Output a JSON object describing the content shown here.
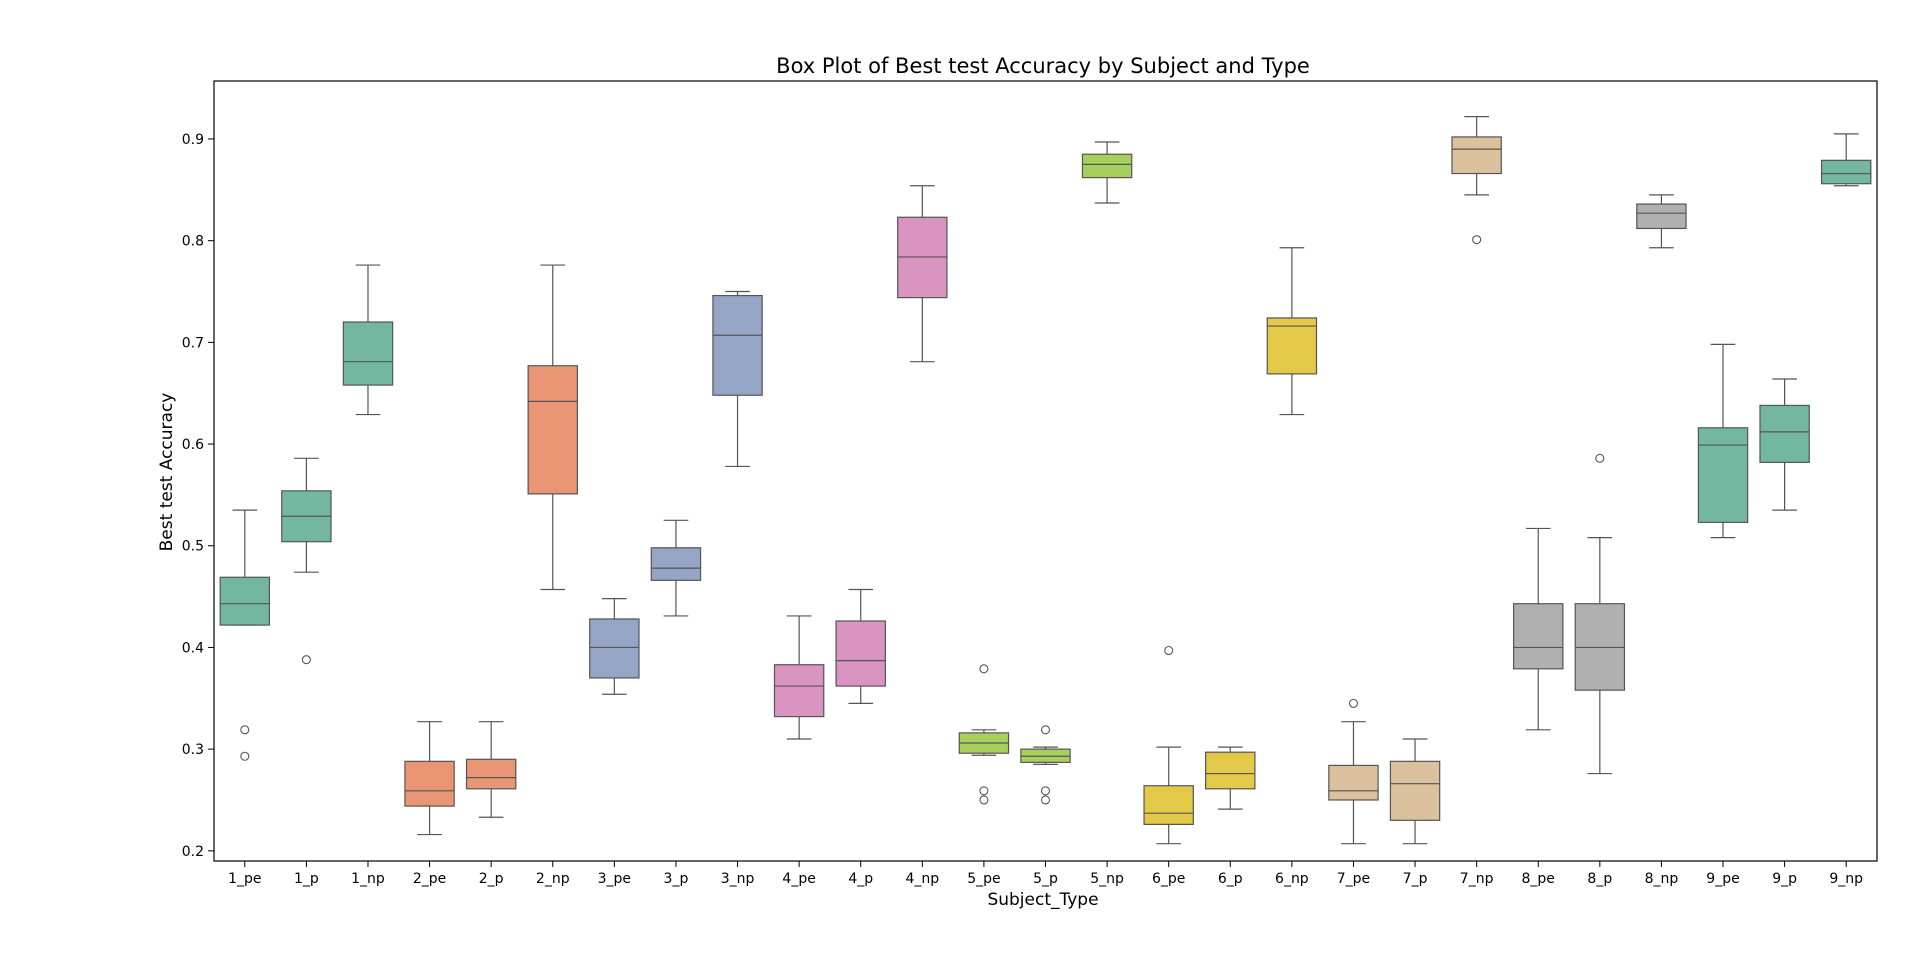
{
  "chart_data": {
    "type": "box",
    "title": "Box Plot of Best test Accuracy by Subject and Type",
    "xlabel": "Subject_Type",
    "ylabel": "Best test Accuracy",
    "ylim": [
      0.19,
      0.957
    ],
    "yticks": [
      0.2,
      0.3,
      0.4,
      0.5,
      0.6,
      0.7,
      0.8,
      0.9
    ],
    "ytick_labels": [
      "0.2",
      "0.3",
      "0.4",
      "0.5",
      "0.6",
      "0.7",
      "0.8",
      "0.9"
    ],
    "grid": false,
    "legend": "none",
    "colors": {
      "1": "#73b7a0",
      "2": "#ea9675",
      "3": "#94a5c6",
      "4": "#da94c2",
      "5": "#a8d05c",
      "6": "#e4c949",
      "7": "#dbc19d",
      "8": "#b0b0b0",
      "9": "#73b7a0",
      "line": "#555555"
    },
    "boxes": [
      {
        "label": "1_pe",
        "group": "1",
        "whislo": 0.422,
        "q1": 0.422,
        "med": 0.443,
        "q3": 0.469,
        "whishi": 0.535,
        "fliers": [
          0.319,
          0.293
        ]
      },
      {
        "label": "1_p",
        "group": "1",
        "whislo": 0.474,
        "q1": 0.504,
        "med": 0.529,
        "q3": 0.554,
        "whishi": 0.586,
        "fliers": [
          0.388
        ]
      },
      {
        "label": "1_np",
        "group": "1",
        "whislo": 0.629,
        "q1": 0.658,
        "med": 0.681,
        "q3": 0.72,
        "whishi": 0.776,
        "fliers": []
      },
      {
        "label": "2_pe",
        "group": "2",
        "whislo": 0.216,
        "q1": 0.244,
        "med": 0.259,
        "q3": 0.288,
        "whishi": 0.327,
        "fliers": []
      },
      {
        "label": "2_p",
        "group": "2",
        "whislo": 0.233,
        "q1": 0.261,
        "med": 0.272,
        "q3": 0.29,
        "whishi": 0.327,
        "fliers": []
      },
      {
        "label": "2_np",
        "group": "2",
        "whislo": 0.457,
        "q1": 0.551,
        "med": 0.642,
        "q3": 0.677,
        "whishi": 0.776,
        "fliers": []
      },
      {
        "label": "3_pe",
        "group": "3",
        "whislo": 0.354,
        "q1": 0.37,
        "med": 0.4,
        "q3": 0.428,
        "whishi": 0.448,
        "fliers": []
      },
      {
        "label": "3_p",
        "group": "3",
        "whislo": 0.431,
        "q1": 0.466,
        "med": 0.478,
        "q3": 0.498,
        "whishi": 0.525,
        "fliers": []
      },
      {
        "label": "3_np",
        "group": "3",
        "whislo": 0.578,
        "q1": 0.648,
        "med": 0.707,
        "q3": 0.746,
        "whishi": 0.75,
        "fliers": []
      },
      {
        "label": "4_pe",
        "group": "4",
        "whislo": 0.31,
        "q1": 0.332,
        "med": 0.362,
        "q3": 0.383,
        "whishi": 0.431,
        "fliers": []
      },
      {
        "label": "4_p",
        "group": "4",
        "whislo": 0.345,
        "q1": 0.362,
        "med": 0.387,
        "q3": 0.426,
        "whishi": 0.457,
        "fliers": []
      },
      {
        "label": "4_np",
        "group": "4",
        "whislo": 0.681,
        "q1": 0.744,
        "med": 0.784,
        "q3": 0.823,
        "whishi": 0.854,
        "fliers": []
      },
      {
        "label": "5_pe",
        "group": "5",
        "whislo": 0.294,
        "q1": 0.296,
        "med": 0.306,
        "q3": 0.316,
        "whishi": 0.319,
        "fliers": [
          0.379,
          0.259,
          0.25
        ]
      },
      {
        "label": "5_p",
        "group": "5",
        "whislo": 0.285,
        "q1": 0.287,
        "med": 0.293,
        "q3": 0.3,
        "whishi": 0.302,
        "fliers": [
          0.319,
          0.259,
          0.25
        ]
      },
      {
        "label": "5_np",
        "group": "5",
        "whislo": 0.837,
        "q1": 0.862,
        "med": 0.875,
        "q3": 0.885,
        "whishi": 0.897,
        "fliers": []
      },
      {
        "label": "6_pe",
        "group": "6",
        "whislo": 0.207,
        "q1": 0.226,
        "med": 0.237,
        "q3": 0.264,
        "whishi": 0.302,
        "fliers": [
          0.397
        ]
      },
      {
        "label": "6_p",
        "group": "6",
        "whislo": 0.241,
        "q1": 0.261,
        "med": 0.276,
        "q3": 0.297,
        "whishi": 0.302,
        "fliers": []
      },
      {
        "label": "6_np",
        "group": "6",
        "whislo": 0.629,
        "q1": 0.669,
        "med": 0.716,
        "q3": 0.724,
        "whishi": 0.793,
        "fliers": []
      },
      {
        "label": "7_pe",
        "group": "7",
        "whislo": 0.207,
        "q1": 0.25,
        "med": 0.259,
        "q3": 0.284,
        "whishi": 0.327,
        "fliers": [
          0.345
        ]
      },
      {
        "label": "7_p",
        "group": "7",
        "whislo": 0.207,
        "q1": 0.23,
        "med": 0.266,
        "q3": 0.288,
        "whishi": 0.31,
        "fliers": []
      },
      {
        "label": "7_np",
        "group": "7",
        "whislo": 0.845,
        "q1": 0.866,
        "med": 0.89,
        "q3": 0.902,
        "whishi": 0.922,
        "fliers": [
          0.801
        ]
      },
      {
        "label": "8_pe",
        "group": "8",
        "whislo": 0.319,
        "q1": 0.379,
        "med": 0.4,
        "q3": 0.443,
        "whishi": 0.517,
        "fliers": []
      },
      {
        "label": "8_p",
        "group": "8",
        "whislo": 0.276,
        "q1": 0.358,
        "med": 0.4,
        "q3": 0.443,
        "whishi": 0.508,
        "fliers": [
          0.586
        ]
      },
      {
        "label": "8_np",
        "group": "8",
        "whislo": 0.793,
        "q1": 0.812,
        "med": 0.827,
        "q3": 0.836,
        "whishi": 0.845,
        "fliers": []
      },
      {
        "label": "9_pe",
        "group": "9",
        "whislo": 0.508,
        "q1": 0.523,
        "med": 0.599,
        "q3": 0.616,
        "whishi": 0.698,
        "fliers": []
      },
      {
        "label": "9_p",
        "group": "9",
        "whislo": 0.535,
        "q1": 0.582,
        "med": 0.612,
        "q3": 0.638,
        "whishi": 0.664,
        "fliers": []
      },
      {
        "label": "9_np",
        "group": "9",
        "whislo": 0.854,
        "q1": 0.856,
        "med": 0.866,
        "q3": 0.879,
        "whishi": 0.905,
        "fliers": []
      }
    ]
  }
}
